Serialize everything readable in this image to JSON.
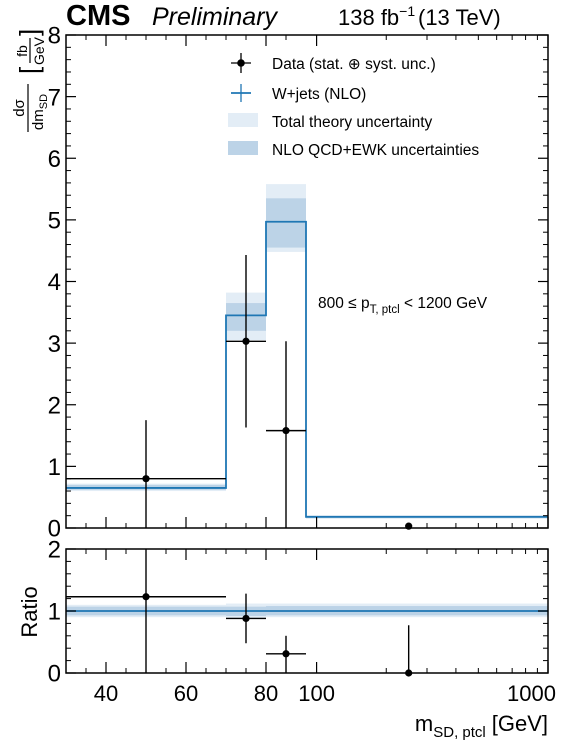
{
  "header": {
    "experiment": "CMS",
    "status": "Preliminary",
    "lumi_value": "138 fb",
    "lumi_exponent": "−1",
    "energy": "(13 TeV)"
  },
  "annotation": {
    "main": "800 ≤ p",
    "sub": "T, ptcl",
    "tail": " < 1200 GeV"
  },
  "colors": {
    "data": "#000000",
    "prediction": "#1f77b4",
    "total_theory_band": "#e3edf6",
    "qcd_ewk_band": "#bcd3e7"
  },
  "chart_data": [
    {
      "type": "line",
      "panel": "main",
      "ylabel": {
        "main": "dσ",
        "main_den": "dm",
        "main_den_sub": "SD",
        "unit_num": "fb",
        "unit_den": "GeV"
      },
      "ylim": [
        0,
        8
      ],
      "yticks": [
        "0",
        "1",
        "2",
        "3",
        "4",
        "5",
        "6",
        "7",
        "8"
      ],
      "x_bin_edges": [
        30,
        70,
        80,
        90,
        1000
      ],
      "x_scale": "segmented",
      "legend_position": "top-right",
      "legend": [
        {
          "key": "data",
          "label": "Data (stat. ⊕ syst. unc.)"
        },
        {
          "key": "wjets",
          "label": "W+jets (NLO)"
        },
        {
          "key": "total",
          "label": "Total theory uncertainty"
        },
        {
          "key": "qcd",
          "label": "NLO QCD+EWK uncertainties"
        }
      ],
      "series": [
        {
          "name": "W+jets (NLO)",
          "values": [
            0.65,
            3.45,
            4.97,
            0.18
          ],
          "total_band": [
            [
              0.6,
              0.72
            ],
            [
              3.05,
              3.82
            ],
            [
              4.48,
              5.58
            ],
            [
              0.15,
              0.21
            ]
          ],
          "qcd_band": [
            [
              0.62,
              0.7
            ],
            [
              3.2,
              3.65
            ],
            [
              4.55,
              5.35
            ],
            [
              0.16,
              0.2
            ]
          ]
        },
        {
          "name": "Data (stat. ⊕ syst. unc.)",
          "points": [
            {
              "x": 50,
              "y": 0.8,
              "yerr": [
                0.8,
                0.95
              ],
              "bin": [
                30,
                70
              ]
            },
            {
              "x": 75,
              "y": 3.03,
              "yerr": [
                1.4,
                1.4
              ],
              "bin": [
                70,
                80
              ]
            },
            {
              "x": 85,
              "y": 1.58,
              "yerr": [
                1.58,
                1.45
              ],
              "bin": [
                80,
                90
              ]
            },
            {
              "x": 250,
              "y": 0.03,
              "yerr": [
                0.03,
                0.0
              ],
              "bin": [
                90,
                1000
              ]
            }
          ]
        }
      ]
    },
    {
      "type": "line",
      "panel": "ratio",
      "ylabel": "Ratio",
      "xlabel": {
        "main": "m",
        "sub": "SD, ptcl",
        "unit": "[GeV]"
      },
      "ylim": [
        0,
        2
      ],
      "yticks": [
        "0",
        "1",
        "2"
      ],
      "xticks": [
        {
          "x": 40,
          "label": "40"
        },
        {
          "x": 60,
          "label": "60"
        },
        {
          "x": 80,
          "label": "80"
        },
        {
          "x": 100,
          "label": "100"
        },
        {
          "x": 1000,
          "label": "1000"
        }
      ],
      "series": [
        {
          "name": "W+jets (NLO)",
          "values": [
            1,
            1,
            1,
            1
          ],
          "total_band": [
            [
              0.9,
              1.1
            ],
            [
              0.88,
              1.12
            ],
            [
              0.9,
              1.12
            ],
            [
              0.9,
              1.12
            ]
          ],
          "qcd_band": [
            [
              0.93,
              1.07
            ],
            [
              0.92,
              1.07
            ],
            [
              0.93,
              1.08
            ],
            [
              0.93,
              1.08
            ]
          ]
        },
        {
          "name": "Data (stat. ⊕ syst. unc.)",
          "points": [
            {
              "x": 50,
              "y": 1.23,
              "yerr": [
                1.23,
                0.77
              ],
              "bin": [
                30,
                70
              ]
            },
            {
              "x": 75,
              "y": 0.88,
              "yerr": [
                0.4,
                0.4
              ],
              "bin": [
                70,
                80
              ]
            },
            {
              "x": 85,
              "y": 0.31,
              "yerr": [
                0.31,
                0.29
              ],
              "bin": [
                80,
                90
              ]
            },
            {
              "x": 250,
              "y": 0.0,
              "yerr": [
                0.0,
                0.77
              ],
              "bin": [
                90,
                1000
              ]
            }
          ]
        }
      ]
    }
  ]
}
